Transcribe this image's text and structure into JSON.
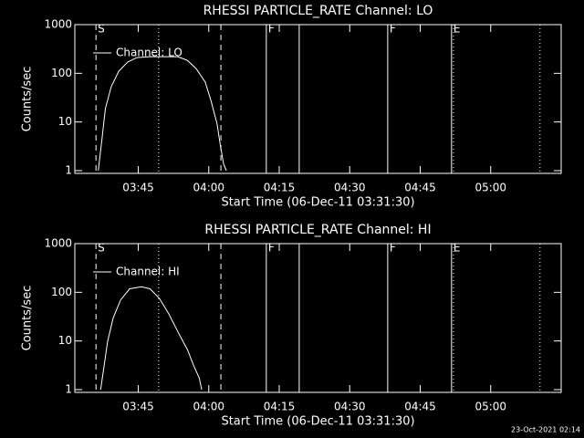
{
  "chart_data": [
    {
      "type": "line",
      "title": "RHESSI PARTICLE_RATE Channel: LO",
      "xlabel": "Start Time (06-Dec-11 03:31:30)",
      "ylabel": "Counts/sec",
      "xlim": [
        "03:31:30",
        "05:15:00"
      ],
      "xticks": [
        "03:45",
        "04:00",
        "04:15",
        "04:30",
        "04:45",
        "05:00"
      ],
      "ylim": [
        1,
        1000
      ],
      "yticks": [
        1,
        10,
        100,
        1000
      ],
      "log_y": true,
      "legend": "upper-left",
      "x": [
        "03:36:30",
        "03:37:20",
        "03:38:00",
        "03:39:15",
        "03:40:50",
        "03:42:45",
        "03:44:45",
        "03:47:30",
        "03:50:30",
        "03:53:25",
        "03:55:25",
        "03:57:20",
        "03:59:15",
        "04:00:30",
        "04:01:45",
        "04:02:30",
        "04:03:10",
        "04:03:45"
      ],
      "series": [
        {
          "name": "Channel: LO",
          "color": "#ffffff",
          "values": [
            1,
            4.9,
            19,
            53,
            110,
            170,
            210,
            220,
            220,
            220,
            185,
            125,
            66,
            27,
            9.3,
            3.2,
            1.35,
            1
          ]
        }
      ],
      "markers": [
        {
          "x": "03:36:00",
          "style": "dashed",
          "label": "S"
        },
        {
          "x": "03:49:20",
          "style": "dotted"
        },
        {
          "x": "04:02:35",
          "style": "dashed"
        },
        {
          "x": "04:12:15",
          "style": "solid",
          "label": "F"
        },
        {
          "x": "04:19:15",
          "style": "solid"
        },
        {
          "x": "04:38:05",
          "style": "solid",
          "label": "F"
        },
        {
          "x": "04:51:40",
          "style": "solid",
          "label": "E"
        },
        {
          "x": "04:52:05",
          "style": "dotted"
        },
        {
          "x": "05:10:30",
          "style": "dotted"
        }
      ]
    },
    {
      "type": "line",
      "title": "RHESSI PARTICLE_RATE Channel: HI",
      "xlabel": "Start Time (06-Dec-11 03:31:30)",
      "ylabel": "Counts/sec",
      "xlim": [
        "03:31:30",
        "05:15:00"
      ],
      "xticks": [
        "03:45",
        "04:00",
        "04:15",
        "04:30",
        "04:45",
        "05:00"
      ],
      "ylim": [
        1,
        1000
      ],
      "yticks": [
        1,
        10,
        100,
        1000
      ],
      "log_y": true,
      "legend": "upper-left",
      "x": [
        "03:37:00",
        "03:37:45",
        "03:38:30",
        "03:39:40",
        "03:41:15",
        "03:43:10",
        "03:45:40",
        "03:47:30",
        "03:49:30",
        "03:51:30",
        "03:53:30",
        "03:55:30",
        "03:56:45",
        "03:58:00",
        "03:58:30"
      ],
      "series": [
        {
          "name": "Channel: HI",
          "color": "#ffffff",
          "values": [
            1,
            3.2,
            10,
            30,
            70,
            118,
            130,
            118,
            75,
            36,
            15,
            6.5,
            3.2,
            1.7,
            1
          ]
        }
      ],
      "markers": [
        {
          "x": "03:36:00",
          "style": "dashed",
          "label": "S"
        },
        {
          "x": "03:49:20",
          "style": "dotted"
        },
        {
          "x": "04:02:35",
          "style": "dashed"
        },
        {
          "x": "04:12:15",
          "style": "solid",
          "label": "F"
        },
        {
          "x": "04:19:15",
          "style": "solid"
        },
        {
          "x": "04:38:05",
          "style": "solid",
          "label": "F"
        },
        {
          "x": "04:51:40",
          "style": "solid",
          "label": "E"
        },
        {
          "x": "04:52:05",
          "style": "dotted"
        },
        {
          "x": "05:10:30",
          "style": "dotted"
        }
      ]
    }
  ],
  "footer": "23-Oct-2021 02:14"
}
